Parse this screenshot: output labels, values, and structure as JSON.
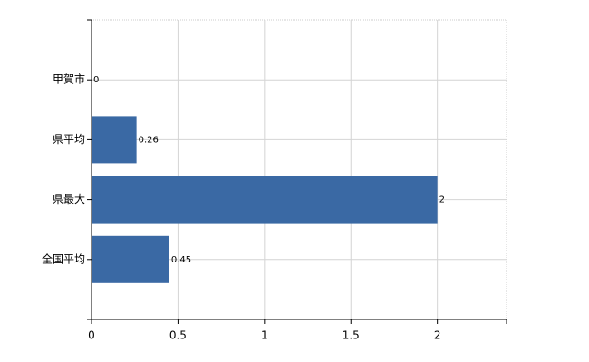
{
  "chart_data": {
    "type": "bar",
    "orientation": "horizontal",
    "categories": [
      "甲賀市",
      "県平均",
      "県最大",
      "全国平均"
    ],
    "values": [
      0,
      0.26,
      2,
      0.45
    ],
    "color": "#3a69a4",
    "xlim": [
      0,
      2.4
    ],
    "xticks": [
      0,
      0.5,
      1,
      1.5,
      2
    ],
    "grid": true
  }
}
